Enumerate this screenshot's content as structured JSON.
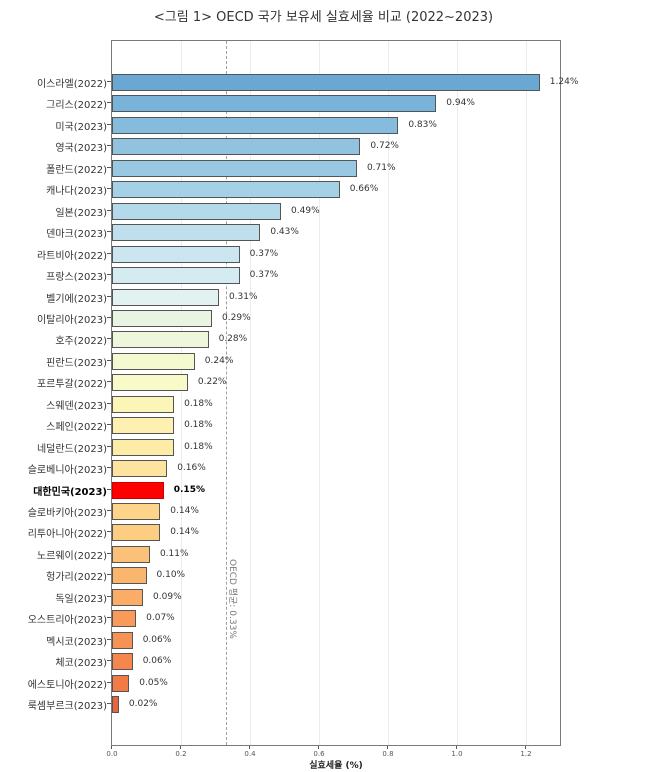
{
  "chart_data": {
    "type": "bar",
    "orientation": "horizontal",
    "title": "<그림 1> OECD 국가 보유세 실효세율 비교 (2022~2023)",
    "xlabel": "실효세율 (%)",
    "ylabel": "",
    "xlim": [
      0,
      1.3
    ],
    "xticks": [
      "0.0",
      "0.2",
      "0.4",
      "0.6",
      "0.8",
      "1.0",
      "1.2"
    ],
    "grid": "vertical",
    "reference_line": {
      "value": 0.33,
      "label": "OECD 평균: 0.33%",
      "style": "dashed"
    },
    "highlight": "대한민국(2023)",
    "categories": [
      "이스라엘(2022)",
      "그리스(2022)",
      "미국(2023)",
      "영국(2023)",
      "폴란드(2022)",
      "캐나다(2023)",
      "일본(2023)",
      "덴마크(2023)",
      "라트비아(2022)",
      "프랑스(2023)",
      "벨기에(2023)",
      "이탈리아(2023)",
      "호주(2022)",
      "핀란드(2023)",
      "포르투갈(2022)",
      "스웨덴(2023)",
      "스페인(2022)",
      "네덜란드(2023)",
      "슬로베니아(2023)",
      "대한민국(2023)",
      "슬로바키아(2023)",
      "리투아니아(2022)",
      "노르웨이(2022)",
      "헝가리(2022)",
      "독일(2023)",
      "오스트리아(2023)",
      "멕시코(2023)",
      "체코(2023)",
      "에스토니아(2022)",
      "룩셈부르크(2023)"
    ],
    "values": [
      1.24,
      0.94,
      0.83,
      0.72,
      0.71,
      0.66,
      0.49,
      0.43,
      0.37,
      0.37,
      0.31,
      0.29,
      0.28,
      0.24,
      0.22,
      0.18,
      0.18,
      0.18,
      0.16,
      0.15,
      0.14,
      0.14,
      0.11,
      0.1,
      0.09,
      0.07,
      0.06,
      0.06,
      0.05,
      0.02
    ],
    "value_labels": [
      "1.24%",
      "0.94%",
      "0.83%",
      "0.72%",
      "0.71%",
      "0.66%",
      "0.49%",
      "0.43%",
      "0.37%",
      "0.37%",
      "0.31%",
      "0.29%",
      "0.28%",
      "0.24%",
      "0.22%",
      "0.18%",
      "0.18%",
      "0.18%",
      "0.16%",
      "0.15%",
      "0.14%",
      "0.14%",
      "0.11%",
      "0.10%",
      "0.09%",
      "0.07%",
      "0.06%",
      "0.06%",
      "0.05%",
      "0.02%"
    ],
    "colors": [
      "#6aa7d3",
      "#7ab3d9",
      "#85bbdc",
      "#91c3e0",
      "#98c8e2",
      "#a5d1e6",
      "#b4d9ea",
      "#bfdfed",
      "#cbe6f0",
      "#d5ebf2",
      "#e2f2f0",
      "#e8f5e2",
      "#eef7dc",
      "#f4f9d0",
      "#f8fac8",
      "#fcf5b8",
      "#fdf0b0",
      "#fdeba8",
      "#fde3a0",
      "#ff0000",
      "#fdd48a",
      "#fdcd82",
      "#fcc179",
      "#fbb66e",
      "#fbac66",
      "#f99a5a",
      "#f79255",
      "#f5874e",
      "#f27a45",
      "#e8643a"
    ]
  }
}
